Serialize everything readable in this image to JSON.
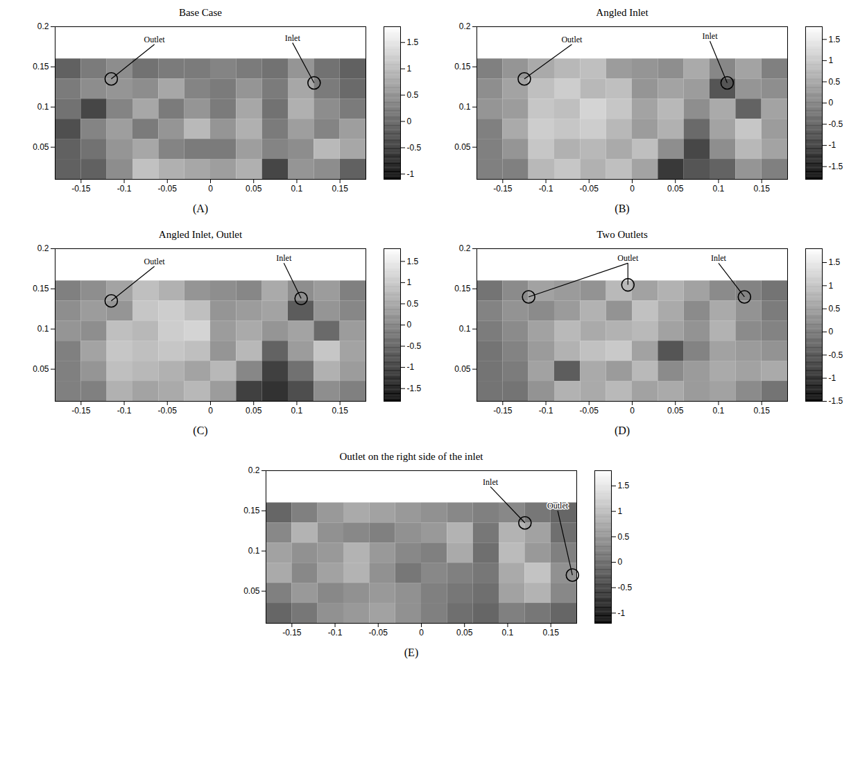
{
  "chart_data": [
    {
      "type": "heatmap",
      "title": "Base Case",
      "label": "(A)",
      "xlim": [
        -0.18,
        0.18
      ],
      "ylim": [
        0.01,
        0.2
      ],
      "xticks": [
        -0.15,
        -0.1,
        -0.05,
        0,
        0.05,
        0.1,
        0.15
      ],
      "yticks": [
        0.05,
        0.1,
        0.15,
        0.2
      ],
      "x": [
        -0.165,
        -0.135,
        -0.105,
        -0.075,
        -0.045,
        -0.015,
        0.015,
        0.045,
        0.075,
        0.105,
        0.135,
        0.165
      ],
      "y": [
        0.1475,
        0.1225,
        0.0975,
        0.0725,
        0.0475,
        0.0225
      ],
      "cells": [
        [
          0,
          0.3,
          0.5,
          0.2,
          0.3,
          0.3,
          0.4,
          0.3,
          0.2,
          0.6,
          0.2,
          0
        ],
        [
          0.3,
          0.5,
          0.6,
          0.5,
          0.8,
          0.4,
          0.3,
          0.6,
          0.3,
          0.8,
          0.3,
          0.1
        ],
        [
          0.2,
          -0.3,
          0.4,
          0.8,
          0.3,
          0.6,
          0.3,
          0.8,
          0.2,
          0.9,
          0.5,
          0.3
        ],
        [
          -0.2,
          0.4,
          0.7,
          0.3,
          0.6,
          1.0,
          0.6,
          0.9,
          0.3,
          0.7,
          0.4,
          0.7
        ],
        [
          0,
          0.2,
          0.6,
          0.8,
          0.4,
          0.3,
          0.3,
          0.7,
          0.4,
          0.5,
          1.0,
          0.8
        ],
        [
          0,
          0,
          0.5,
          1.1,
          0.9,
          0.8,
          0.7,
          0.9,
          -0.3,
          0.6,
          0.5,
          0
        ]
      ],
      "clim": [
        -1.1,
        1.8
      ],
      "cticks": [
        -1,
        -0.5,
        0,
        0.5,
        1,
        1.5
      ],
      "annotations": [
        {
          "text": "Outlet",
          "x": -0.065,
          "y": 0.178,
          "targets": [
            [
              -0.115,
              0.135
            ]
          ]
        },
        {
          "text": "Inlet",
          "x": 0.095,
          "y": 0.18,
          "targets": [
            [
              0.12,
              0.13
            ]
          ]
        }
      ]
    },
    {
      "type": "heatmap",
      "title": "Angled Inlet",
      "label": "(B)",
      "xlim": [
        -0.18,
        0.18
      ],
      "ylim": [
        0.01,
        0.2
      ],
      "xticks": [
        -0.15,
        -0.1,
        -0.05,
        0,
        0.05,
        0.1,
        0.15
      ],
      "yticks": [
        0.05,
        0.1,
        0.15,
        0.2
      ],
      "x": [
        -0.165,
        -0.135,
        -0.105,
        -0.075,
        -0.045,
        -0.015,
        0.015,
        0.045,
        0.075,
        0.105,
        0.135,
        0.165
      ],
      "y": [
        0.1475,
        0.1225,
        0.0975,
        0.0725,
        0.0475,
        0.0225
      ],
      "cells": [
        [
          0,
          0.3,
          0.6,
          0.8,
          0.9,
          0.4,
          0.3,
          0.2,
          0.6,
          0.1,
          0.5,
          0
        ],
        [
          0.2,
          0.5,
          0.9,
          1.1,
          0.8,
          0.9,
          0.3,
          0.5,
          0.4,
          -0.6,
          0.3,
          0.2
        ],
        [
          0.3,
          0.4,
          1.0,
          0.9,
          1.2,
          1.0,
          0.5,
          0.8,
          0.2,
          0.6,
          -0.4,
          0.5
        ],
        [
          0,
          0.6,
          1.1,
          1.0,
          1.1,
          0.8,
          0.4,
          0.7,
          -0.3,
          0.5,
          1.0,
          0.4
        ],
        [
          0,
          0.3,
          1.0,
          0.7,
          0.8,
          0.6,
          0.9,
          0.2,
          -0.8,
          0.2,
          0.8,
          0.5
        ],
        [
          0,
          0,
          0.8,
          1.0,
          0.7,
          0.9,
          0.5,
          -1.0,
          -0.6,
          -0.4,
          0.3,
          0
        ]
      ],
      "clim": [
        -1.8,
        1.8
      ],
      "cticks": [
        -1.5,
        -1,
        -0.5,
        0,
        0.5,
        1,
        1.5
      ],
      "annotations": [
        {
          "text": "Outlet",
          "x": -0.07,
          "y": 0.178,
          "targets": [
            [
              -0.125,
              0.135
            ]
          ]
        },
        {
          "text": "Inlet",
          "x": 0.09,
          "y": 0.182,
          "targets": [
            [
              0.11,
              0.13
            ]
          ]
        }
      ]
    },
    {
      "type": "heatmap",
      "title": "Angled Inlet, Outlet",
      "label": "(C)",
      "xlim": [
        -0.18,
        0.18
      ],
      "ylim": [
        0.01,
        0.2
      ],
      "xticks": [
        -0.15,
        -0.1,
        -0.05,
        0,
        0.05,
        0.1,
        0.15
      ],
      "yticks": [
        0.05,
        0.1,
        0.15,
        0.2
      ],
      "x": [
        -0.165,
        -0.135,
        -0.105,
        -0.075,
        -0.045,
        -0.015,
        0.015,
        0.045,
        0.075,
        0.105,
        0.135,
        0.165
      ],
      "y": [
        0.1475,
        0.1225,
        0.0975,
        0.0725,
        0.0475,
        0.0225
      ],
      "cells": [
        [
          0,
          0.2,
          0.5,
          0.9,
          0.7,
          0.3,
          0.2,
          0.1,
          0.6,
          0.2,
          0.4,
          0
        ],
        [
          0.2,
          0.4,
          0.3,
          1.0,
          1.1,
          0.9,
          0.3,
          0.4,
          0.5,
          -0.5,
          0.3,
          0.1
        ],
        [
          0.3,
          0.2,
          0.9,
          0.8,
          1.1,
          1.2,
          0.4,
          0.6,
          0.3,
          0.5,
          -0.3,
          0.4
        ],
        [
          0,
          0.5,
          1.0,
          0.9,
          1.0,
          0.9,
          0.3,
          0.8,
          -0.4,
          0.4,
          1.0,
          0.5
        ],
        [
          0,
          0.3,
          0.9,
          0.8,
          0.7,
          0.5,
          0.8,
          0.1,
          -0.9,
          -0.2,
          0.7,
          0.4
        ],
        [
          0,
          0,
          0.7,
          0.5,
          0.6,
          0.8,
          0.4,
          -0.9,
          -1.1,
          -0.7,
          0.2,
          0
        ]
      ],
      "clim": [
        -1.8,
        1.8
      ],
      "cticks": [
        -1.5,
        -1,
        -0.5,
        0,
        0.5,
        1,
        1.5
      ],
      "annotations": [
        {
          "text": "Outlet",
          "x": -0.065,
          "y": 0.178,
          "targets": [
            [
              -0.115,
              0.135
            ]
          ]
        },
        {
          "text": "Inlet",
          "x": 0.085,
          "y": 0.182,
          "targets": [
            [
              0.105,
              0.138
            ]
          ]
        }
      ]
    },
    {
      "type": "heatmap",
      "title": "Two Outlets",
      "label": "(D)",
      "xlim": [
        -0.18,
        0.18
      ],
      "ylim": [
        0.01,
        0.2
      ],
      "xticks": [
        -0.15,
        -0.1,
        -0.05,
        0,
        0.05,
        0.1,
        0.15
      ],
      "yticks": [
        0.05,
        0.1,
        0.15,
        0.2
      ],
      "x": [
        -0.165,
        -0.135,
        -0.105,
        -0.075,
        -0.045,
        -0.015,
        0.015,
        0.045,
        0.075,
        0.105,
        0.135,
        0.165
      ],
      "y": [
        0.1475,
        0.1225,
        0.0975,
        0.0725,
        0.0475,
        0.0225
      ],
      "cells": [
        [
          0,
          0.3,
          0.6,
          0.5,
          0.4,
          0.9,
          0.6,
          0.8,
          0.6,
          0.3,
          0.2,
          0
        ],
        [
          0.2,
          0.4,
          0.3,
          0.5,
          0.8,
          0.4,
          1.0,
          0.7,
          0.3,
          0.7,
          0.4,
          0.1
        ],
        [
          0.1,
          0.3,
          0.6,
          0.9,
          0.7,
          0.8,
          0.9,
          0.6,
          0.4,
          0.8,
          0.3,
          0.2
        ],
        [
          0,
          0.2,
          0.5,
          0.8,
          1.0,
          1.1,
          0.6,
          -0.4,
          0.2,
          0.6,
          0.5,
          0.4
        ],
        [
          0,
          0.1,
          0.6,
          -0.3,
          0.7,
          0.5,
          0.9,
          0.3,
          0.5,
          0.7,
          0.6,
          0.7
        ],
        [
          0,
          0,
          0.4,
          0.8,
          0.7,
          0.9,
          0.6,
          0.7,
          0.5,
          0.6,
          0.3,
          0
        ]
      ],
      "clim": [
        -1.5,
        1.8
      ],
      "cticks": [
        -1.5,
        -1,
        -0.5,
        0,
        0.5,
        1,
        1.5
      ],
      "annotations": [
        {
          "text": "Outlet",
          "x": -0.005,
          "y": 0.182,
          "targets": [
            [
              -0.12,
              0.14
            ],
            [
              -0.005,
              0.155
            ]
          ]
        },
        {
          "text": "Inlet",
          "x": 0.1,
          "y": 0.182,
          "targets": [
            [
              0.13,
              0.14
            ]
          ]
        }
      ]
    },
    {
      "type": "heatmap",
      "title": "Outlet on the right side of the inlet",
      "label": "(E)",
      "xlim": [
        -0.18,
        0.18
      ],
      "ylim": [
        0.01,
        0.2
      ],
      "xticks": [
        -0.15,
        -0.1,
        -0.05,
        0,
        0.05,
        0.1,
        0.15
      ],
      "yticks": [
        0.05,
        0.1,
        0.15,
        0.2
      ],
      "x": [
        -0.165,
        -0.135,
        -0.105,
        -0.075,
        -0.045,
        -0.015,
        0.015,
        0.045,
        0.075,
        0.105,
        0.135,
        0.165
      ],
      "y": [
        0.1475,
        0.1225,
        0.0975,
        0.0725,
        0.0475,
        0.0225
      ],
      "cells": [
        [
          0,
          0.3,
          0.6,
          0.8,
          0.7,
          0.6,
          0.5,
          0.4,
          0.3,
          0.4,
          0.2,
          0
        ],
        [
          0.4,
          0.9,
          0.5,
          0.4,
          0.3,
          0.5,
          0.6,
          0.9,
          0.2,
          0.9,
          0.7,
          0.1
        ],
        [
          0.7,
          0.5,
          0.6,
          0.9,
          0.6,
          0.4,
          0.3,
          0.8,
          0.1,
          1.0,
          0.6,
          0.3
        ],
        [
          0.8,
          0.4,
          0.7,
          0.9,
          0.5,
          0.2,
          0.4,
          0.3,
          0.2,
          0.8,
          1.1,
          0.5
        ],
        [
          0.3,
          0.6,
          0.4,
          0.5,
          0.6,
          0.5,
          0.3,
          0.2,
          0.1,
          0.7,
          0.9,
          0.4
        ],
        [
          0,
          0.2,
          0.5,
          0.6,
          0.7,
          0.5,
          0.3,
          0.1,
          0,
          0.3,
          0.2,
          0
        ]
      ],
      "clim": [
        -1.2,
        1.8
      ],
      "cticks": [
        -1,
        -0.5,
        0,
        0.5,
        1,
        1.5
      ],
      "annotations": [
        {
          "text": "Inlet",
          "x": 0.08,
          "y": 0.18,
          "targets": [
            [
              0.12,
              0.135
            ]
          ]
        },
        {
          "text": "Outlet",
          "x": 0.158,
          "y": 0.15,
          "targets": [
            [
              0.175,
              0.07
            ]
          ]
        }
      ]
    }
  ]
}
